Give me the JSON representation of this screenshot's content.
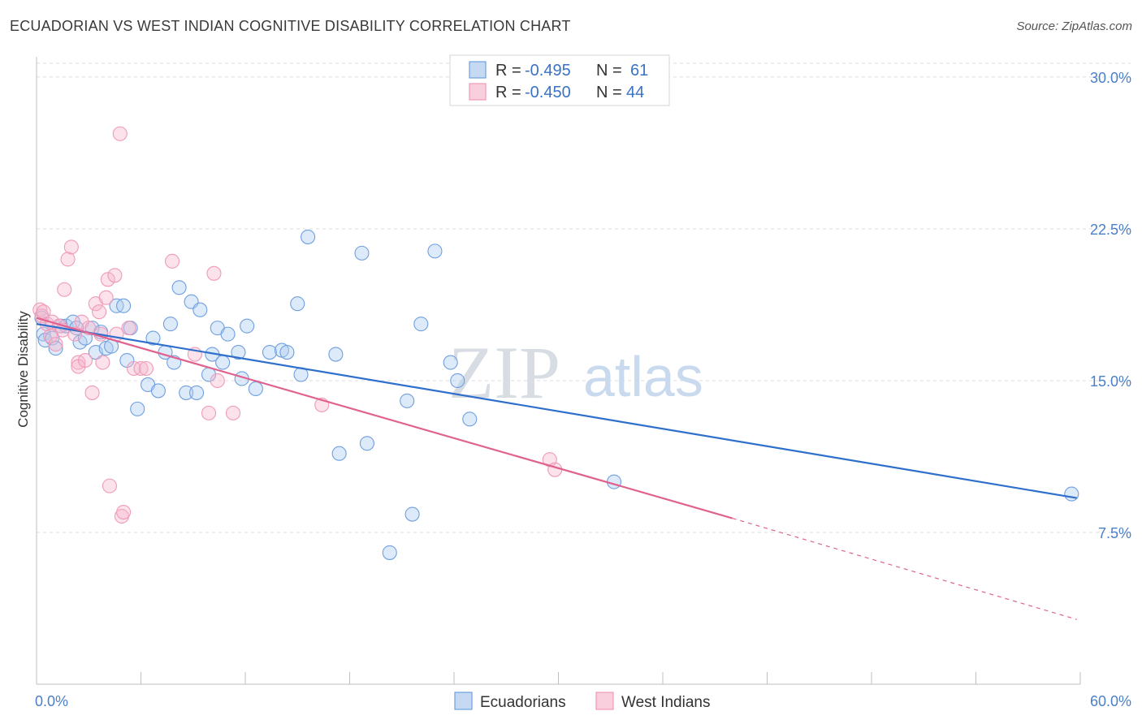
{
  "title": "ECUADORIAN VS WEST INDIAN COGNITIVE DISABILITY CORRELATION CHART",
  "source": "Source: ZipAtlas.com",
  "watermark": {
    "zip": "ZIP",
    "atlas": "atlas"
  },
  "chart_data": {
    "type": "scatter",
    "ylabel": "Cognitive Disability",
    "xlim": [
      0,
      60
    ],
    "ylim": [
      0,
      31
    ],
    "x_tick_labels": [
      {
        "value": 0,
        "label": "0.0%"
      },
      {
        "value": 60,
        "label": "60.0%"
      }
    ],
    "y_ticks": [
      {
        "value": 7.5,
        "label": "7.5%"
      },
      {
        "value": 15.0,
        "label": "15.0%"
      },
      {
        "value": 22.5,
        "label": "22.5%"
      },
      {
        "value": 30.0,
        "label": "30.0%"
      }
    ],
    "grid": "horizontal dashed",
    "legend": {
      "placement": "top-center",
      "entries": [
        {
          "r_label": "R =",
          "r_value": "-0.495",
          "n_label": "N =",
          "n_value": "61"
        },
        {
          "r_label": "R =",
          "r_value": "-0.450",
          "n_label": "N =",
          "n_value": "44"
        }
      ]
    },
    "series": [
      {
        "name": "Ecuadorians",
        "color": "#6f9fe0",
        "line_color": "#2f6fcc",
        "trend": {
          "x": [
            0.0,
            59.8
          ],
          "y": [
            17.8,
            9.2
          ]
        },
        "points": [
          [
            0.3,
            18.1
          ],
          [
            0.4,
            17.3
          ],
          [
            0.5,
            17.0
          ],
          [
            0.9,
            17.1
          ],
          [
            1.1,
            16.6
          ],
          [
            1.4,
            17.7
          ],
          [
            1.7,
            17.7
          ],
          [
            2.1,
            17.9
          ],
          [
            2.5,
            16.9
          ],
          [
            2.8,
            17.1
          ],
          [
            3.2,
            17.6
          ],
          [
            3.4,
            16.4
          ],
          [
            3.7,
            17.4
          ],
          [
            4.0,
            16.6
          ],
          [
            4.3,
            16.7
          ],
          [
            4.6,
            18.7
          ],
          [
            5.0,
            18.7
          ],
          [
            5.2,
            16.0
          ],
          [
            5.4,
            17.6
          ],
          [
            5.8,
            13.6
          ],
          [
            6.4,
            14.8
          ],
          [
            6.7,
            17.1
          ],
          [
            7.0,
            14.5
          ],
          [
            7.4,
            16.4
          ],
          [
            7.7,
            17.8
          ],
          [
            7.9,
            15.9
          ],
          [
            8.2,
            19.6
          ],
          [
            8.6,
            14.4
          ],
          [
            8.9,
            18.9
          ],
          [
            9.2,
            14.4
          ],
          [
            9.4,
            18.5
          ],
          [
            9.9,
            15.3
          ],
          [
            10.1,
            16.3
          ],
          [
            10.4,
            17.6
          ],
          [
            10.7,
            15.9
          ],
          [
            11.0,
            17.3
          ],
          [
            11.6,
            16.4
          ],
          [
            11.8,
            15.1
          ],
          [
            12.1,
            17.7
          ],
          [
            12.6,
            14.6
          ],
          [
            13.4,
            16.4
          ],
          [
            14.1,
            16.5
          ],
          [
            14.4,
            16.4
          ],
          [
            15.0,
            18.8
          ],
          [
            15.2,
            15.3
          ],
          [
            15.6,
            22.1
          ],
          [
            17.2,
            16.3
          ],
          [
            17.4,
            11.4
          ],
          [
            18.7,
            21.3
          ],
          [
            19.0,
            11.9
          ],
          [
            20.3,
            6.5
          ],
          [
            21.3,
            14.0
          ],
          [
            21.6,
            8.4
          ],
          [
            22.1,
            17.8
          ],
          [
            22.9,
            21.4
          ],
          [
            23.8,
            15.9
          ],
          [
            24.2,
            15.0
          ],
          [
            24.9,
            13.1
          ],
          [
            33.2,
            10.0
          ],
          [
            59.5,
            9.4
          ],
          [
            2.3,
            17.6
          ]
        ]
      },
      {
        "name": "West Indians",
        "color": "#f09ab8",
        "line_color": "#e0628f",
        "trend": {
          "x": [
            0.0,
            40.0
          ],
          "y": [
            18.1,
            8.2
          ]
        },
        "trend_dashed": {
          "x": [
            40.0,
            59.8
          ],
          "y": [
            8.2,
            3.2
          ]
        },
        "points": [
          [
            0.2,
            18.5
          ],
          [
            0.3,
            18.2
          ],
          [
            0.4,
            18.4
          ],
          [
            0.6,
            17.8
          ],
          [
            0.8,
            17.2
          ],
          [
            0.9,
            17.9
          ],
          [
            1.1,
            16.8
          ],
          [
            1.3,
            17.7
          ],
          [
            1.5,
            17.5
          ],
          [
            1.6,
            19.5
          ],
          [
            1.8,
            21.0
          ],
          [
            2.0,
            21.6
          ],
          [
            2.2,
            17.3
          ],
          [
            2.4,
            15.9
          ],
          [
            2.4,
            15.7
          ],
          [
            2.6,
            17.9
          ],
          [
            2.8,
            16.0
          ],
          [
            3.0,
            17.6
          ],
          [
            3.2,
            14.4
          ],
          [
            3.4,
            18.8
          ],
          [
            3.6,
            18.4
          ],
          [
            3.7,
            17.3
          ],
          [
            3.8,
            15.9
          ],
          [
            4.0,
            19.1
          ],
          [
            4.1,
            20.0
          ],
          [
            4.2,
            9.8
          ],
          [
            4.5,
            20.2
          ],
          [
            4.6,
            17.3
          ],
          [
            4.8,
            27.2
          ],
          [
            4.9,
            8.3
          ],
          [
            5.0,
            8.5
          ],
          [
            5.3,
            17.6
          ],
          [
            5.6,
            15.6
          ],
          [
            6.0,
            15.6
          ],
          [
            6.3,
            15.6
          ],
          [
            7.8,
            20.9
          ],
          [
            9.1,
            16.3
          ],
          [
            9.9,
            13.4
          ],
          [
            10.2,
            20.3
          ],
          [
            10.4,
            15.0
          ],
          [
            11.3,
            13.4
          ],
          [
            16.4,
            13.8
          ],
          [
            29.5,
            11.1
          ],
          [
            29.8,
            10.6
          ]
        ]
      }
    ]
  }
}
